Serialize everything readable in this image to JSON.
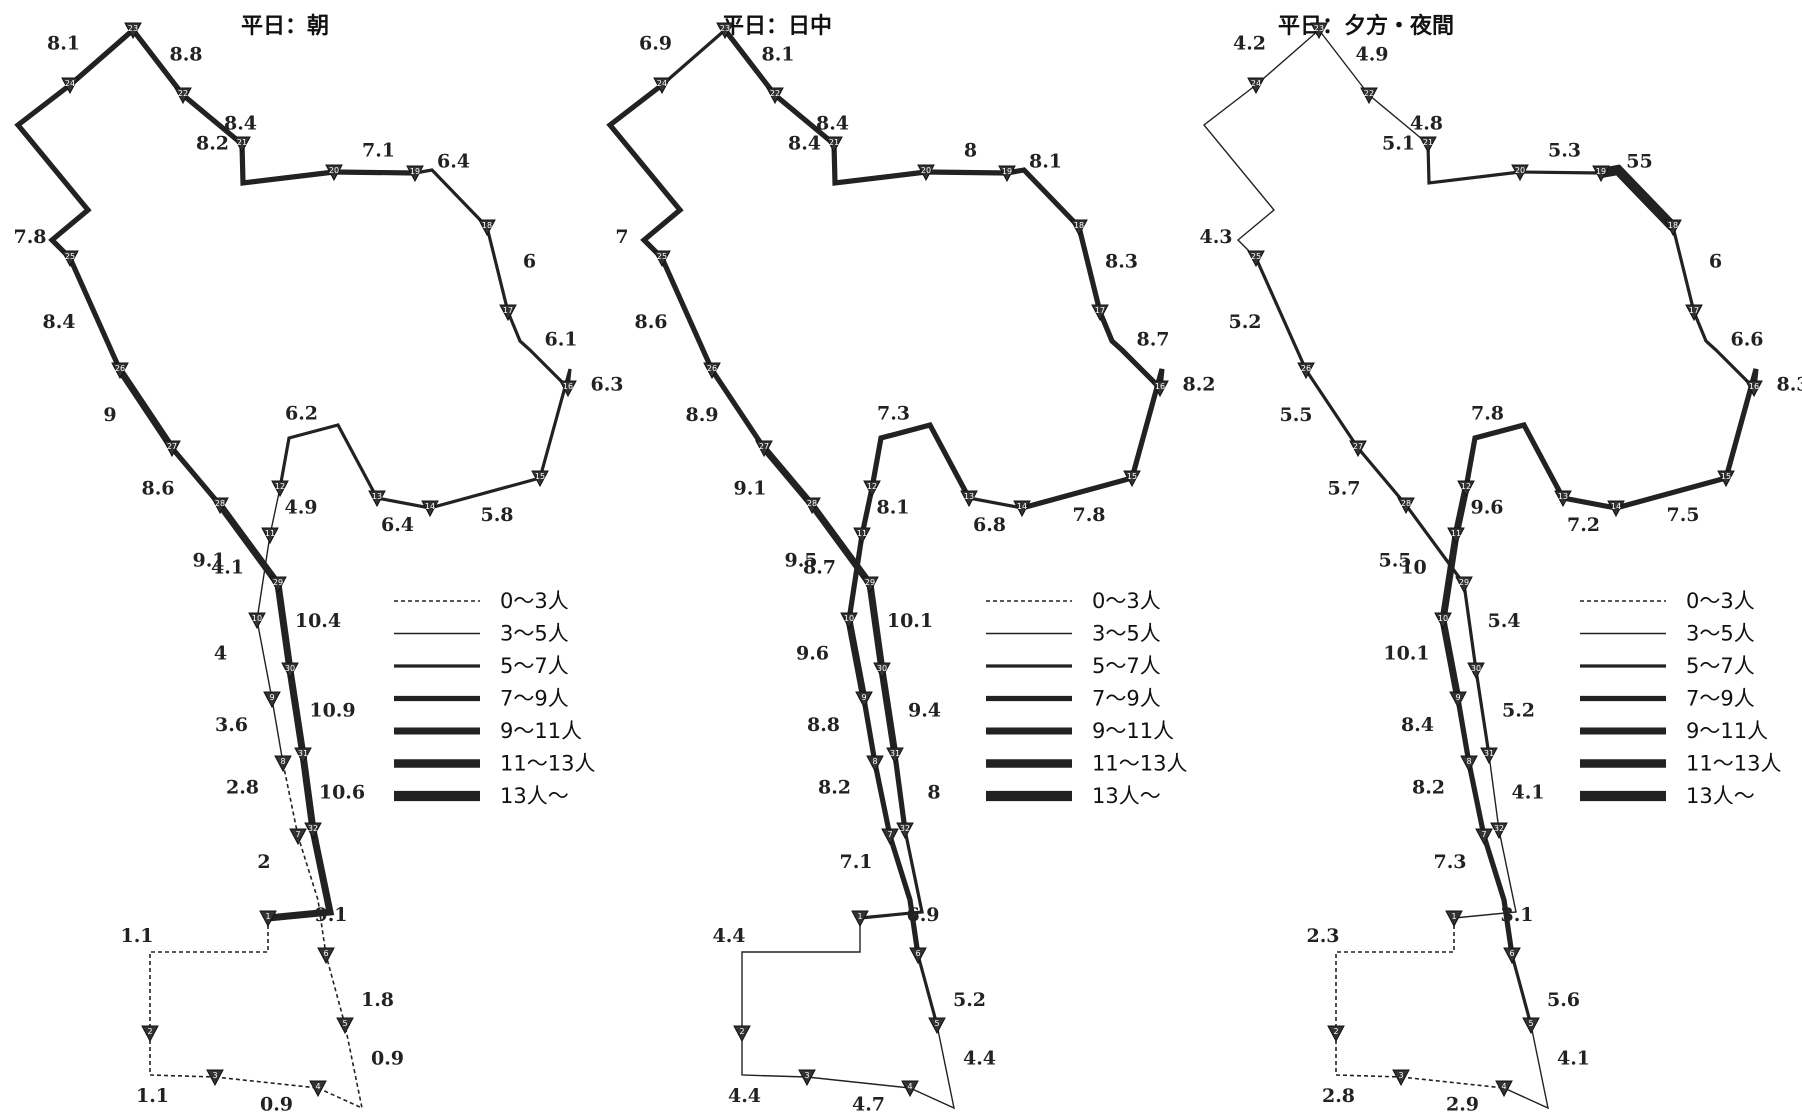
{
  "panels": [
    {
      "title": "平日：朝",
      "segments": [
        {
          "from": 1,
          "to": 2,
          "v": 1.1
        },
        {
          "from": 2,
          "to": 3,
          "v": 1.1
        },
        {
          "from": 3,
          "to": 4,
          "v": 0.9
        },
        {
          "from": 4,
          "to": 5,
          "v": 0.9
        },
        {
          "from": 5,
          "to": 6,
          "v": 1.8
        },
        {
          "from": 6,
          "to": 7,
          "v": 2.0
        },
        {
          "from": 7,
          "to": 8,
          "v": 2.8
        },
        {
          "from": 8,
          "to": 9,
          "v": 3.6
        },
        {
          "from": 9,
          "to": 10,
          "v": 4.0
        },
        {
          "from": 10,
          "to": 11,
          "v": 4.1
        },
        {
          "from": 11,
          "to": 12,
          "v": 4.9
        },
        {
          "from": 12,
          "to": 13,
          "v": 6.2
        },
        {
          "from": 13,
          "to": 14,
          "v": 6.4
        },
        {
          "from": 14,
          "to": 15,
          "v": 5.8
        },
        {
          "from": 15,
          "to": 16,
          "v": 6.3
        },
        {
          "from": 16,
          "to": 17,
          "v": 6.1
        },
        {
          "from": 17,
          "to": 18,
          "v": 6.0
        },
        {
          "from": 18,
          "to": 19,
          "v": 6.4
        },
        {
          "from": 19,
          "to": 20,
          "v": 7.1
        },
        {
          "from": 20,
          "to": 21,
          "v": 8.2
        },
        {
          "from": 21,
          "to": 22,
          "v": 8.4
        },
        {
          "from": 22,
          "to": 23,
          "v": 8.8
        },
        {
          "from": 23,
          "to": 24,
          "v": 8.1
        },
        {
          "from": 24,
          "to": 25,
          "v": 7.8
        },
        {
          "from": 25,
          "to": 26,
          "v": 8.4
        },
        {
          "from": 26,
          "to": 27,
          "v": 9.0
        },
        {
          "from": 27,
          "to": 28,
          "v": 8.6
        },
        {
          "from": 28,
          "to": 29,
          "v": 9.1
        },
        {
          "from": 29,
          "to": 30,
          "v": 10.4
        },
        {
          "from": 30,
          "to": 31,
          "v": 10.9
        },
        {
          "from": 31,
          "to": 32,
          "v": 10.6
        },
        {
          "from": 32,
          "to": 1,
          "v": 9.1
        }
      ]
    },
    {
      "title": "平日：日中",
      "segments": [
        {
          "from": 1,
          "to": 2,
          "v": 4.4
        },
        {
          "from": 2,
          "to": 3,
          "v": 4.4
        },
        {
          "from": 3,
          "to": 4,
          "v": 4.7
        },
        {
          "from": 4,
          "to": 5,
          "v": 4.4
        },
        {
          "from": 5,
          "to": 6,
          "v": 5.2
        },
        {
          "from": 6,
          "to": 7,
          "v": 7.1
        },
        {
          "from": 7,
          "to": 8,
          "v": 8.2
        },
        {
          "from": 8,
          "to": 9,
          "v": 8.8
        },
        {
          "from": 9,
          "to": 10,
          "v": 9.6
        },
        {
          "from": 10,
          "to": 11,
          "v": 8.7
        },
        {
          "from": 11,
          "to": 12,
          "v": 8.1
        },
        {
          "from": 12,
          "to": 13,
          "v": 7.3
        },
        {
          "from": 13,
          "to": 14,
          "v": 6.8
        },
        {
          "from": 14,
          "to": 15,
          "v": 7.8
        },
        {
          "from": 15,
          "to": 16,
          "v": 8.2
        },
        {
          "from": 16,
          "to": 17,
          "v": 8.7
        },
        {
          "from": 17,
          "to": 18,
          "v": 8.3
        },
        {
          "from": 18,
          "to": 19,
          "v": 8.1
        },
        {
          "from": 19,
          "to": 20,
          "v": 8.0
        },
        {
          "from": 20,
          "to": 21,
          "v": 8.4
        },
        {
          "from": 21,
          "to": 22,
          "v": 8.4
        },
        {
          "from": 22,
          "to": 23,
          "v": 8.1
        },
        {
          "from": 23,
          "to": 24,
          "v": 6.9
        },
        {
          "from": 24,
          "to": 25,
          "v": 7.0
        },
        {
          "from": 25,
          "to": 26,
          "v": 8.6
        },
        {
          "from": 26,
          "to": 27,
          "v": 8.9
        },
        {
          "from": 27,
          "to": 28,
          "v": 9.1
        },
        {
          "from": 28,
          "to": 29,
          "v": 9.5
        },
        {
          "from": 29,
          "to": 30,
          "v": 10.1
        },
        {
          "from": 30,
          "to": 31,
          "v": 9.4
        },
        {
          "from": 31,
          "to": 32,
          "v": 8.0
        },
        {
          "from": 32,
          "to": 1,
          "v": 6.9
        }
      ]
    },
    {
      "title": "平日：夕方・夜間",
      "segments": [
        {
          "from": 1,
          "to": 2,
          "v": 2.3
        },
        {
          "from": 2,
          "to": 3,
          "v": 2.8
        },
        {
          "from": 3,
          "to": 4,
          "v": 2.9
        },
        {
          "from": 4,
          "to": 5,
          "v": 4.1
        },
        {
          "from": 5,
          "to": 6,
          "v": 5.6
        },
        {
          "from": 6,
          "to": 7,
          "v": 7.3
        },
        {
          "from": 7,
          "to": 8,
          "v": 8.2
        },
        {
          "from": 8,
          "to": 9,
          "v": 8.4
        },
        {
          "from": 9,
          "to": 10,
          "v": 10.1
        },
        {
          "from": 10,
          "to": 11,
          "v": 10.0
        },
        {
          "from": 11,
          "to": 12,
          "v": 9.6
        },
        {
          "from": 12,
          "to": 13,
          "v": 7.8
        },
        {
          "from": 13,
          "to": 14,
          "v": 7.2
        },
        {
          "from": 14,
          "to": 15,
          "v": 7.5
        },
        {
          "from": 15,
          "to": 16,
          "v": 8.3
        },
        {
          "from": 16,
          "to": 17,
          "v": 6.6
        },
        {
          "from": 17,
          "to": 18,
          "v": 6.0
        },
        {
          "from": 18,
          "to": 19,
          "v": "55"
        },
        {
          "from": 19,
          "to": 20,
          "v": 5.3
        },
        {
          "from": 20,
          "to": 21,
          "v": 5.1
        },
        {
          "from": 21,
          "to": 22,
          "v": 4.8
        },
        {
          "from": 22,
          "to": 23,
          "v": 4.9
        },
        {
          "from": 23,
          "to": 24,
          "v": 4.2
        },
        {
          "from": 24,
          "to": 25,
          "v": 4.3
        },
        {
          "from": 25,
          "to": 26,
          "v": 5.2
        },
        {
          "from": 26,
          "to": 27,
          "v": 5.5
        },
        {
          "from": 27,
          "to": 28,
          "v": 5.7
        },
        {
          "from": 28,
          "to": 29,
          "v": 5.5
        },
        {
          "from": 29,
          "to": 30,
          "v": 5.4
        },
        {
          "from": 30,
          "to": 31,
          "v": 5.2
        },
        {
          "from": 31,
          "to": 32,
          "v": 4.1
        },
        {
          "from": 32,
          "to": 1,
          "v": 3.1
        }
      ]
    }
  ],
  "legend": [
    {
      "label": "0～3人",
      "style": "dashed"
    },
    {
      "label": "3～5人",
      "style": "thin"
    },
    {
      "label": "5～7人",
      "style": "medium"
    },
    {
      "label": "7～9人",
      "style": "thick"
    },
    {
      "label": "9～11人",
      "style": "thicker"
    },
    {
      "label": "11～13人",
      "style": "heavy"
    },
    {
      "label": "13人～",
      "style": "heaviest"
    }
  ],
  "colors": {
    "line": "#222222",
    "stop": "#333333",
    "background": "#ffffff"
  }
}
